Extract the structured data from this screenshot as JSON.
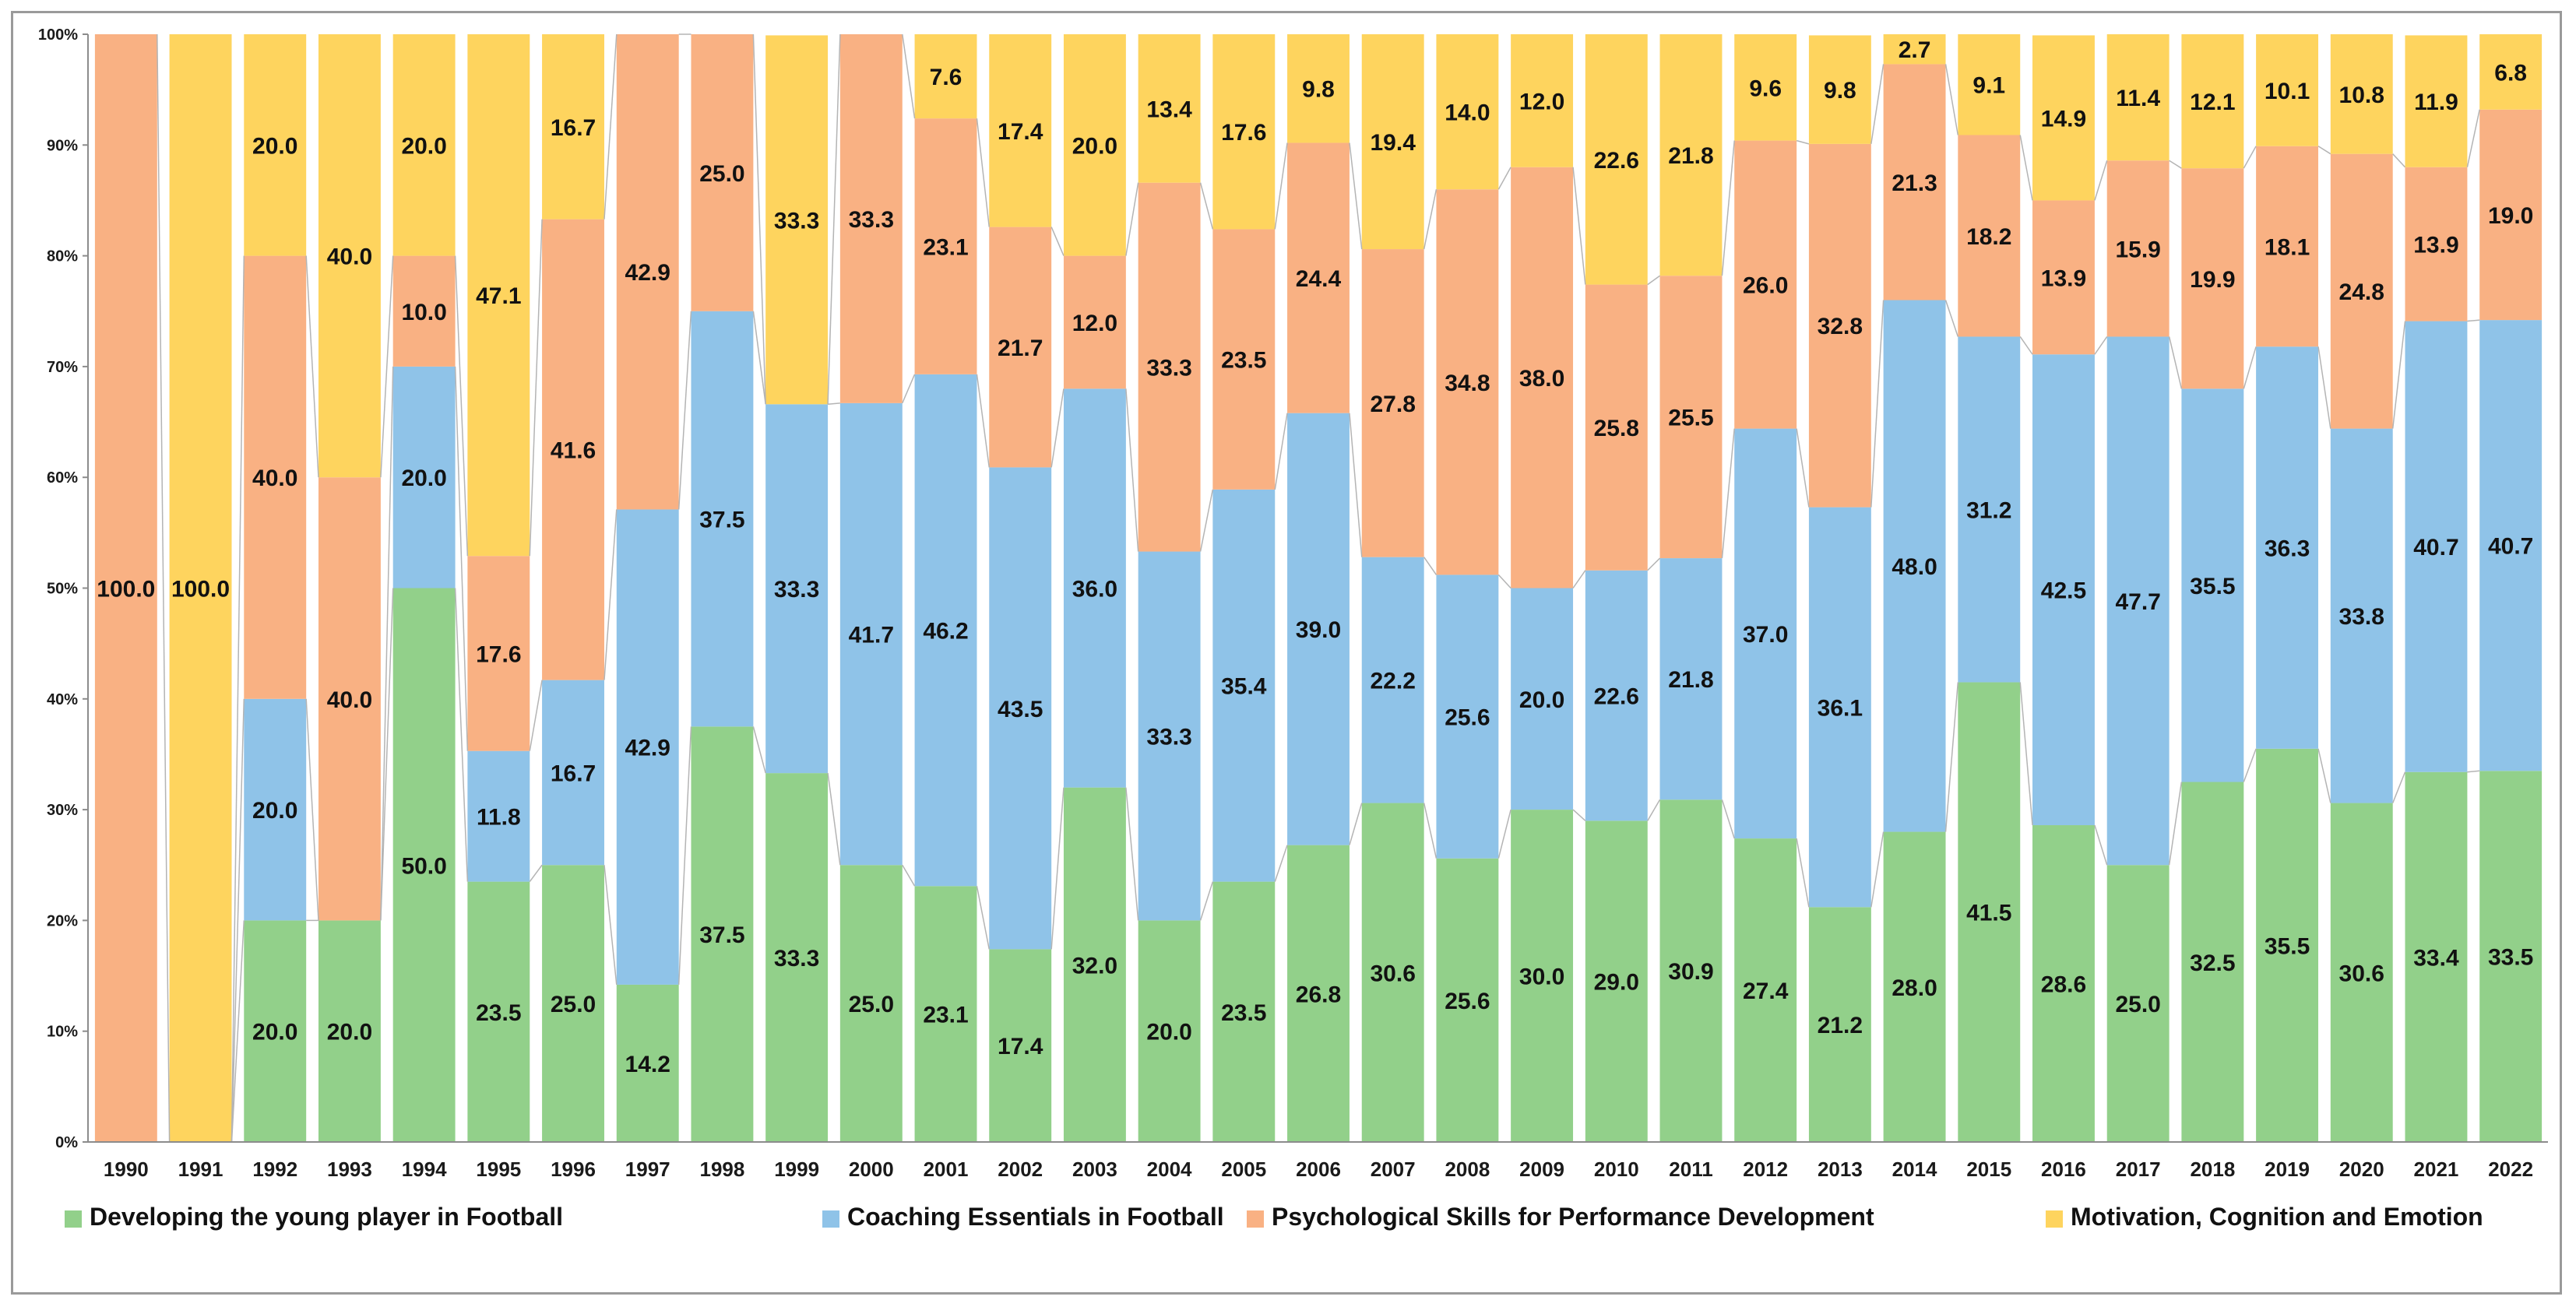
{
  "chart_data": {
    "type": "bar",
    "stacked": "percent",
    "title": "",
    "xlabel": "",
    "ylabel": "",
    "ylim": [
      0,
      100
    ],
    "y_ticks": [
      "0%",
      "10%",
      "20%",
      "30%",
      "40%",
      "50%",
      "60%",
      "70%",
      "80%",
      "90%",
      "100%"
    ],
    "grid": false,
    "legend_position": "bottom",
    "categories": [
      "1990",
      "1991",
      "1992",
      "1993",
      "1994",
      "1995",
      "1996",
      "1997",
      "1998",
      "1999",
      "2000",
      "2001",
      "2002",
      "2003",
      "2004",
      "2005",
      "2006",
      "2007",
      "2008",
      "2009",
      "2010",
      "2011",
      "2012",
      "2013",
      "2014",
      "2015",
      "2016",
      "2017",
      "2018",
      "2019",
      "2020",
      "2021",
      "2022"
    ],
    "series": [
      {
        "name": "Developing the young player in Football",
        "color": "#92d08a",
        "values": [
          0,
          0,
          20.0,
          20.0,
          50.0,
          23.5,
          25.0,
          14.2,
          37.5,
          33.3,
          25.0,
          23.1,
          17.4,
          32.0,
          20.0,
          23.5,
          26.8,
          30.6,
          25.6,
          30.0,
          29.0,
          30.9,
          27.4,
          21.2,
          28.0,
          41.5,
          28.6,
          25.0,
          32.5,
          35.5,
          30.6,
          33.4,
          33.5
        ],
        "labels": [
          "",
          "",
          "20.0",
          "20.0",
          "50.0",
          "23.5",
          "25.0",
          "14.2",
          "37.5",
          "33.3",
          "25.0",
          "23.1",
          "17.4",
          "32.0",
          "20.0",
          "23.5",
          "26.8",
          "30.6",
          "25.6",
          "30.0",
          "29.0",
          "30.9",
          "27.4",
          "21.2",
          "28.0",
          "41.5",
          "28.6",
          "25.0",
          "32.5",
          "35.5",
          "30.6",
          "33.4",
          "33.5"
        ]
      },
      {
        "name": "Coaching Essentials in Football",
        "color": "#8fc3e8",
        "values": [
          0,
          0,
          20.0,
          0,
          20.0,
          11.8,
          16.7,
          42.9,
          37.5,
          33.3,
          41.7,
          46.2,
          43.5,
          36.0,
          33.3,
          35.4,
          39.0,
          22.2,
          25.6,
          20.0,
          22.6,
          21.8,
          37.0,
          36.1,
          48.0,
          31.2,
          42.5,
          47.7,
          35.5,
          36.3,
          33.8,
          40.7,
          40.7
        ],
        "labels": [
          "",
          "",
          "20.0",
          "",
          "20.0",
          "11.8",
          "16.7",
          "42.9",
          "37.5",
          "33.3",
          "41.7",
          "46.2",
          "43.5",
          "36.0",
          "33.3",
          "35.4",
          "39.0",
          "22.2",
          "25.6",
          "20.0",
          "22.6",
          "21.8",
          "37.0",
          "36.1",
          "48.0",
          "31.2",
          "42.5",
          "47.7",
          "35.5",
          "36.3",
          "33.8",
          "40.7",
          "40.7"
        ]
      },
      {
        "name": "Psychological Skills for Performance Development",
        "color": "#f9b183",
        "values": [
          100.0,
          0,
          40.0,
          40.0,
          10.0,
          17.6,
          41.6,
          42.9,
          25.0,
          0,
          33.3,
          23.1,
          21.7,
          12.0,
          33.3,
          23.5,
          24.4,
          27.8,
          34.8,
          38.0,
          25.8,
          25.5,
          26.0,
          32.8,
          21.3,
          18.2,
          13.9,
          15.9,
          19.9,
          18.1,
          24.8,
          13.9,
          19.0
        ],
        "labels": [
          "100.0",
          "",
          "40.0",
          "40.0",
          "10.0",
          "17.6",
          "41.6",
          "42.9",
          "25.0",
          "",
          "33.3",
          "23.1",
          "21.7",
          "12.0",
          "33.3",
          "23.5",
          "24.4",
          "27.8",
          "34.8",
          "38.0",
          "25.8",
          "25.5",
          "26.0",
          "32.8",
          "21.3",
          "18.2",
          "13.9",
          "15.9",
          "19.9",
          "18.1",
          "24.8",
          "13.9",
          "19.0"
        ]
      },
      {
        "name": "Motivation, Cognition and Emotion",
        "color": "#fed45e",
        "values": [
          0,
          100.0,
          20.0,
          40.0,
          20.0,
          47.1,
          16.7,
          0,
          0,
          33.3,
          0,
          7.6,
          17.4,
          20.0,
          13.4,
          17.6,
          9.8,
          19.4,
          14.0,
          12.0,
          22.6,
          21.8,
          9.6,
          9.8,
          2.7,
          9.1,
          14.9,
          11.4,
          12.1,
          10.1,
          10.8,
          11.9,
          6.8
        ],
        "labels": [
          "",
          "100.0",
          "20.0",
          "40.0",
          "20.0",
          "47.1",
          "16.7",
          "",
          "",
          "33.3",
          "",
          "7.6",
          "17.4",
          "20.0",
          "13.4",
          "17.6",
          "9.8",
          "19.4",
          "14.0",
          "12.0",
          "22.6",
          "21.8",
          "9.6",
          "9.8",
          "2.7",
          "9.1",
          "14.9",
          "11.4",
          "12.1",
          "10.1",
          "10.8",
          "11.9",
          "6.8"
        ]
      }
    ]
  }
}
